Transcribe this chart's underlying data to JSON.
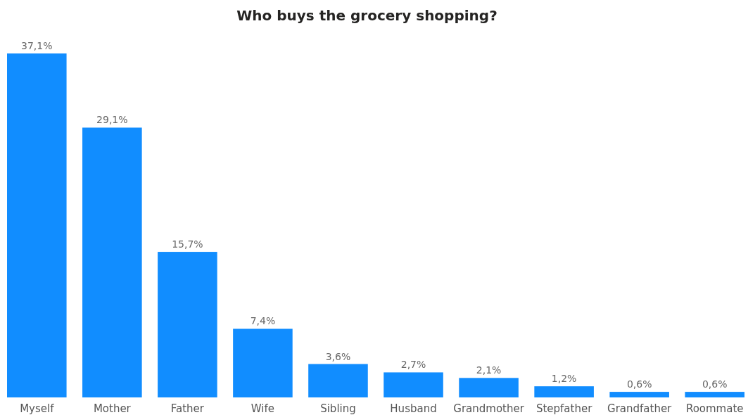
{
  "chart_data": {
    "type": "bar",
    "title": "Who buys the grocery shopping?",
    "categories": [
      "Myself",
      "Mother",
      "Father",
      "Wife",
      "Sibling",
      "Husband",
      "Grandmother",
      "Stepfather",
      "Grandfather",
      "Roommate"
    ],
    "values": [
      37.1,
      29.1,
      15.7,
      7.4,
      3.6,
      2.7,
      2.1,
      1.2,
      0.6,
      0.6
    ],
    "value_labels": [
      "37,1%",
      "29,1%",
      "15,7%",
      "7,4%",
      "3,6%",
      "2,7%",
      "2,1%",
      "1,2%",
      "0,6%",
      "0,6%"
    ],
    "color": "#118dff"
  }
}
